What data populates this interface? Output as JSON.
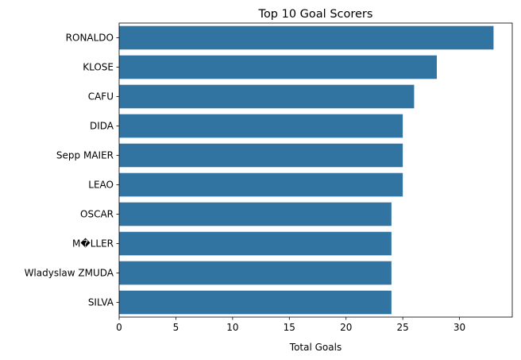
{
  "chart_data": {
    "type": "bar",
    "orientation": "horizontal",
    "title": "Top 10 Goal Scorers",
    "xlabel": "Total Goals",
    "ylabel": "",
    "categories": [
      "RONALDO",
      "KLOSE",
      "CAFU",
      "DIDA",
      "Sepp MAIER",
      "LEAO",
      "OSCAR",
      "M�LLER",
      "Wladyslaw ZMUDA",
      "SILVA"
    ],
    "values": [
      33,
      28,
      26,
      25,
      25,
      25,
      24,
      24,
      24,
      24
    ],
    "xlim": [
      0,
      34.65
    ],
    "xticks": [
      0,
      5,
      10,
      15,
      20,
      25,
      30
    ],
    "xtick_labels": [
      "0",
      "5",
      "10",
      "15",
      "20",
      "25",
      "30"
    ],
    "grid": false,
    "bar_color": "#3274a1"
  }
}
